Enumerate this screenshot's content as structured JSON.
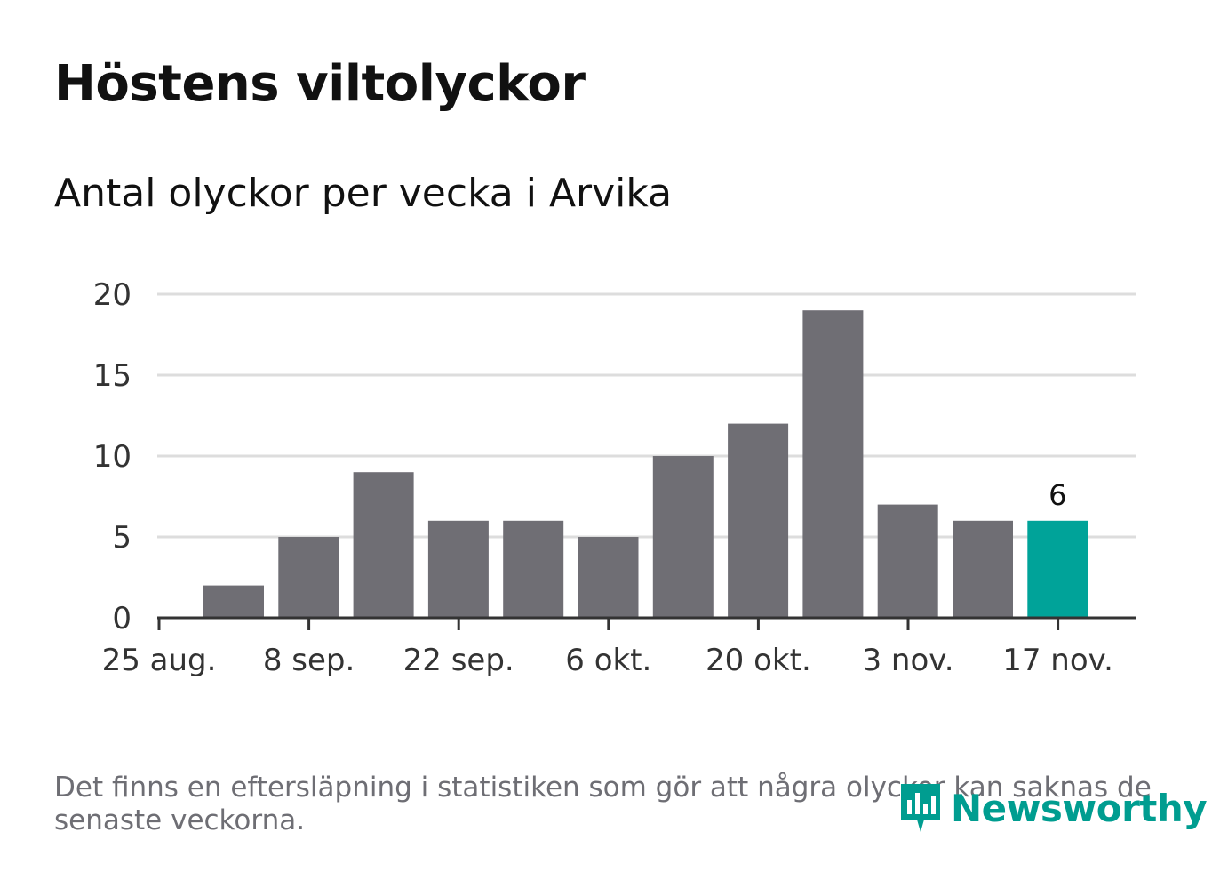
{
  "title": "Höstens viltolyckor",
  "subtitle": "Antal olyckor per vecka i Arvika",
  "footnote": "Det finns en eftersläpning i statistiken som gör att några olyckor kan saknas de senaste veckorna.",
  "logo": {
    "text": "Newsworthy",
    "icon": "newsworthy-chart-bubble-icon"
  },
  "colors": {
    "bar": "#6f6e74",
    "highlight": "#00a399",
    "grid": "#dddddd",
    "axis": "#333333",
    "text": "#333333",
    "brand": "#009d90"
  },
  "chart_data": {
    "type": "bar",
    "x": [
      "1 sep.",
      "8 sep.",
      "15 sep.",
      "22 sep.",
      "29 sep.",
      "6 okt.",
      "13 okt.",
      "20 okt.",
      "27 okt.",
      "3 nov.",
      "10 nov.",
      "17 nov."
    ],
    "values": [
      2,
      5,
      9,
      6,
      6,
      5,
      10,
      12,
      19,
      7,
      6,
      6
    ],
    "highlight_index": 11,
    "data_labels": [
      {
        "index": 11,
        "text": "6"
      }
    ],
    "x_ticks": [
      "25 aug.",
      "8 sep.",
      "22 sep.",
      "6 okt.",
      "20 okt.",
      "3 nov.",
      "17 nov."
    ],
    "y_ticks": [
      "0",
      "5",
      "10",
      "15",
      "20"
    ],
    "ylim": [
      0,
      20
    ],
    "grid": true,
    "xlabel": "",
    "ylabel": "",
    "legend": "none"
  }
}
